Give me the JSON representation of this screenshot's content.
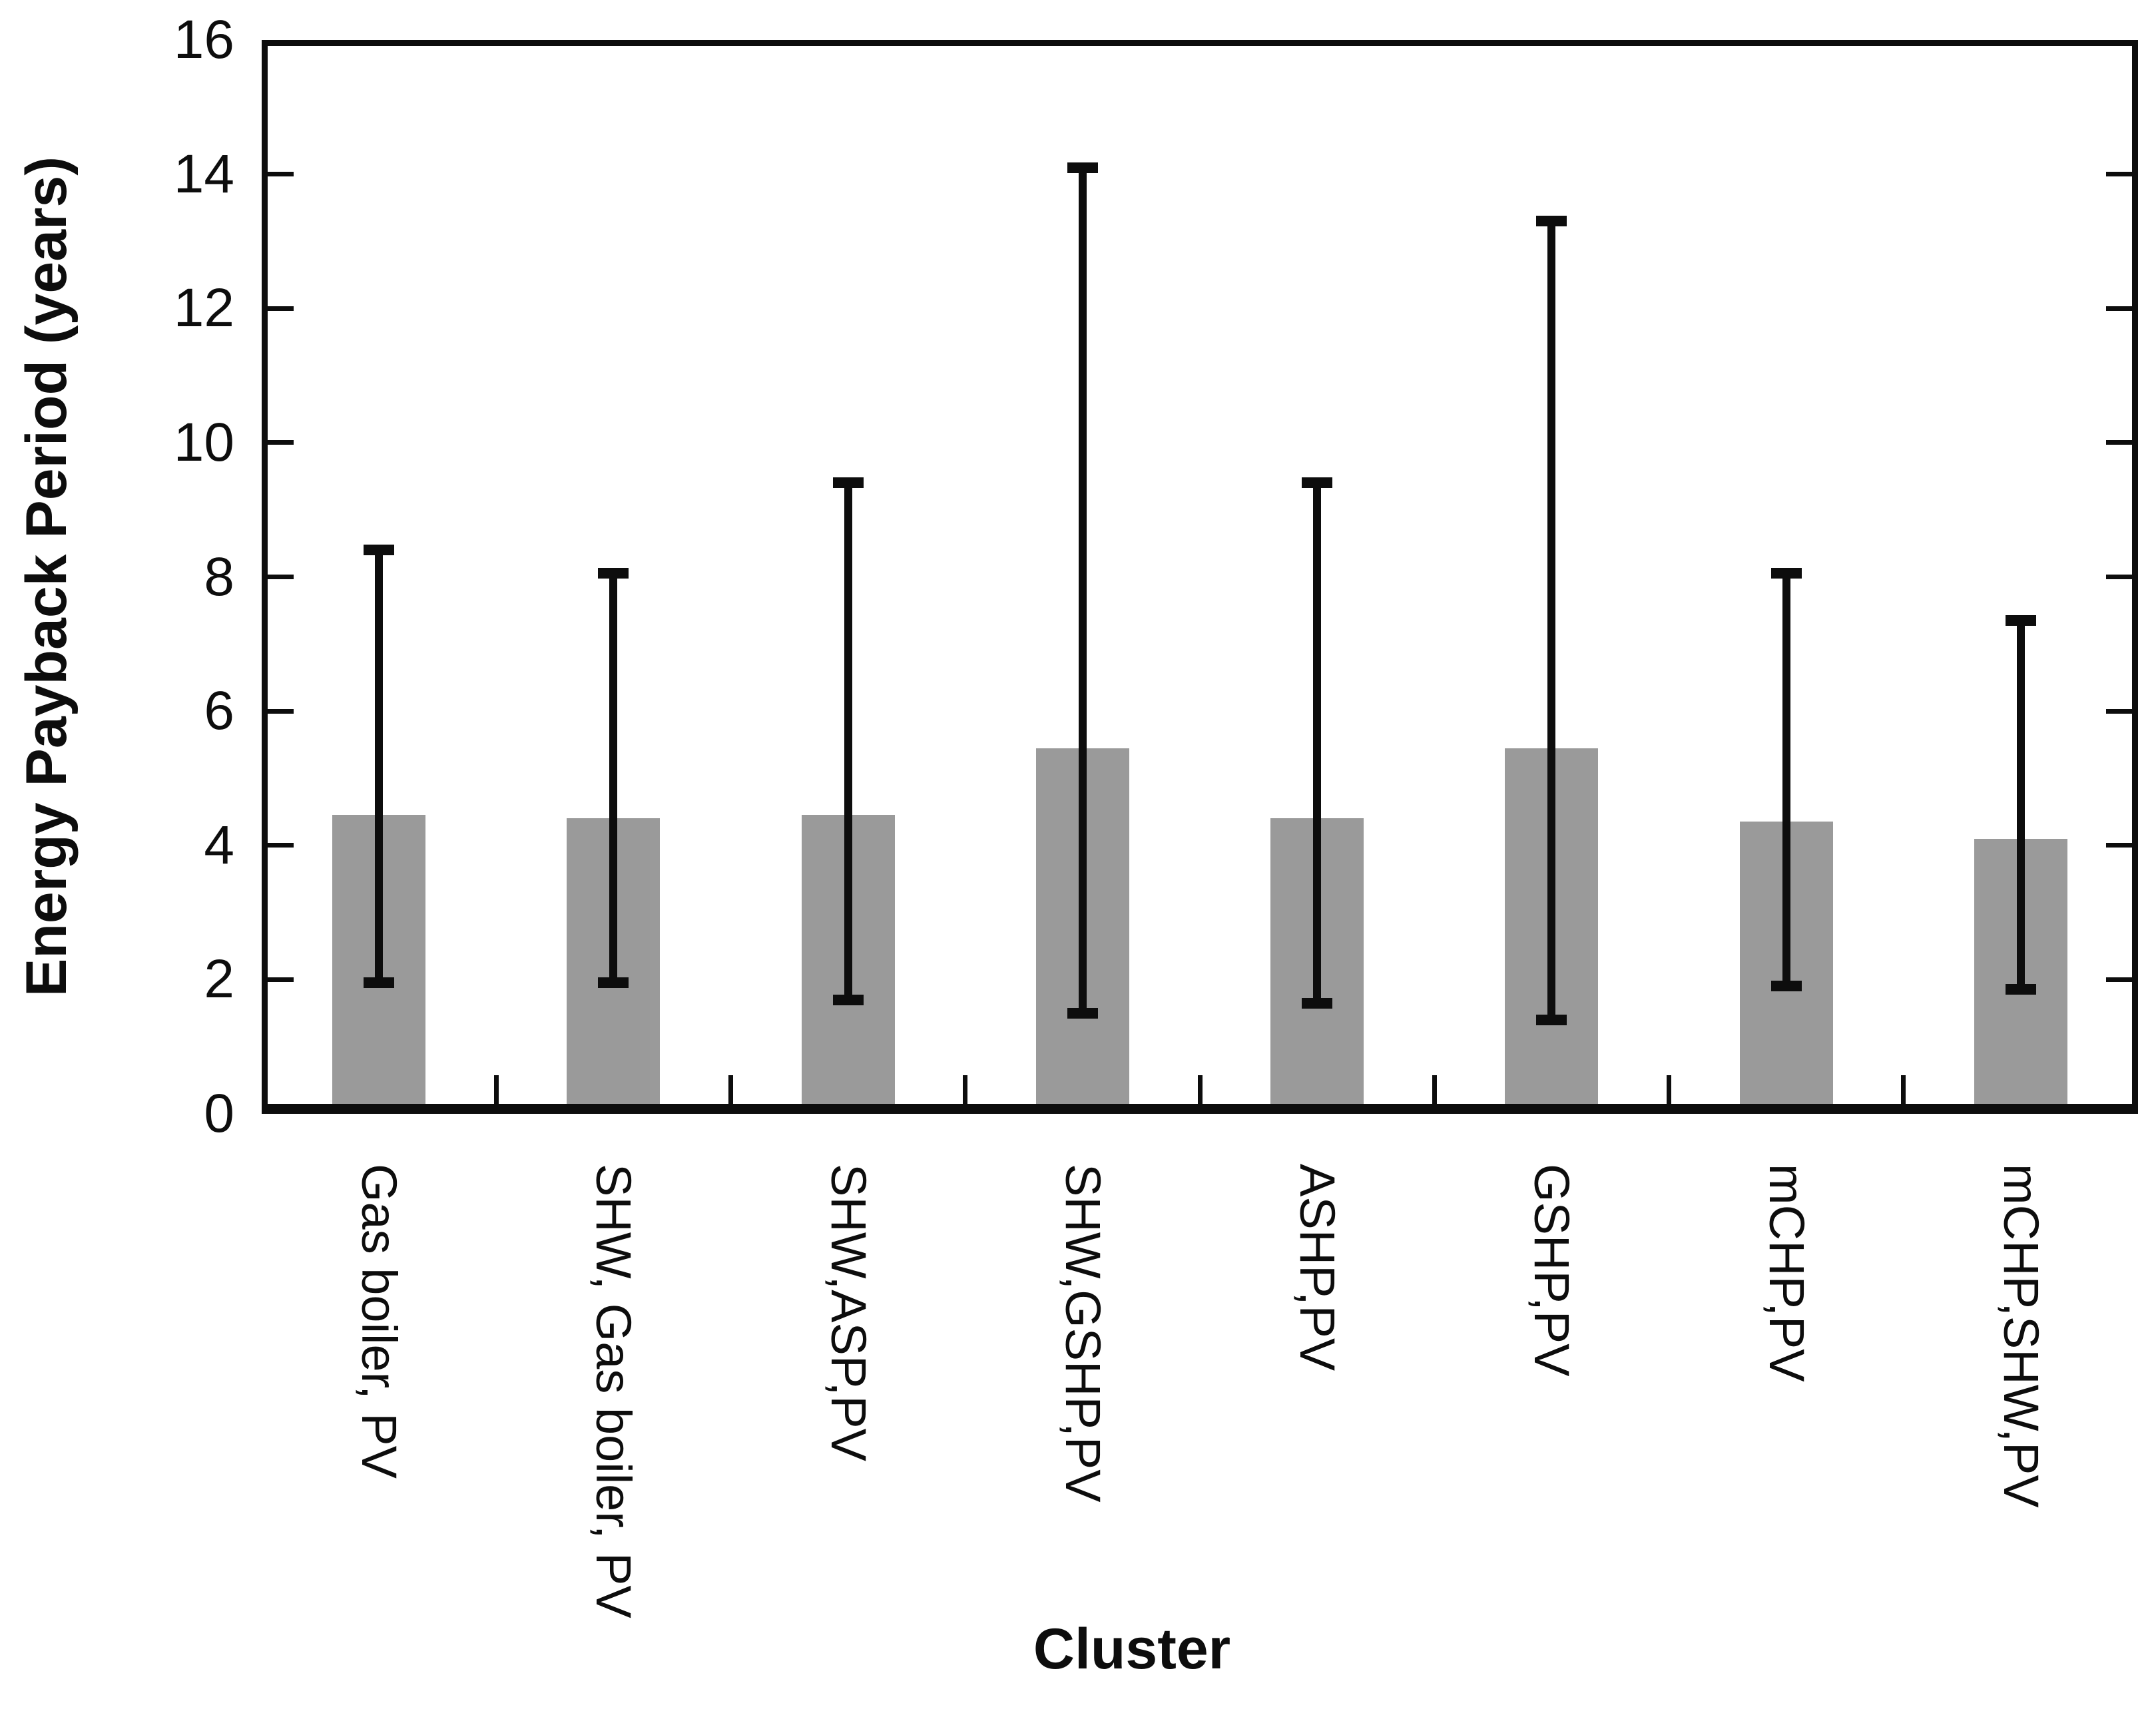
{
  "figure": {
    "background": "#ffffff",
    "frame_color": "#0d0d0d"
  },
  "chart_data": {
    "type": "bar",
    "title": "",
    "xlabel": "Cluster",
    "ylabel": "Energy Payback Period (years)",
    "categories": [
      "Gas boiler, PV",
      "SHW, Gas boiler, PV",
      "SHW,ASP,PV",
      "SHW,GSHP,PV",
      "ASHP,PV",
      "GSHP,PV",
      "mCHP,PV",
      "mCHP,SHW,PV"
    ],
    "series": [
      {
        "name": "Energy Payback Period",
        "values": [
          4.45,
          4.4,
          4.45,
          5.45,
          4.4,
          5.45,
          4.35,
          4.1
        ],
        "error_low": [
          1.95,
          1.95,
          1.7,
          1.5,
          1.65,
          1.4,
          1.9,
          1.85
        ],
        "error_high": [
          8.4,
          8.05,
          9.4,
          14.1,
          9.4,
          13.3,
          8.05,
          7.35
        ]
      }
    ],
    "ylim": [
      0,
      16
    ],
    "yticks": [
      0,
      2,
      4,
      6,
      8,
      10,
      12,
      14,
      16
    ],
    "bar_color": "#9a9a9a",
    "error_color": "#0d0d0d",
    "grid": false,
    "legend": "none",
    "error_bar_style": "caps on both ends, whiskers asymmetric around bar top"
  }
}
